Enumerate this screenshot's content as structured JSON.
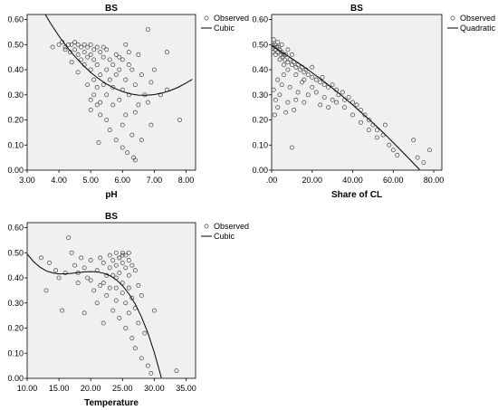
{
  "chart_data": [
    {
      "type": "scatter",
      "title": "BS",
      "xlabel": "pH",
      "ylabel": "",
      "xlim": [
        3.0,
        8.3
      ],
      "ylim": [
        0.0,
        0.62
      ],
      "xticks": [
        "3.00",
        "4.00",
        "5.00",
        "6.00",
        "7.00",
        "8.00"
      ],
      "yticks": [
        "0.00",
        "0.10",
        "0.20",
        "0.30",
        "0.40",
        "0.50",
        "0.60"
      ],
      "legend": {
        "position": "right",
        "observed": "Observed",
        "fit": "Cubic"
      },
      "fit_type": "cubic",
      "points": [
        [
          4.1,
          0.51
        ],
        [
          4.2,
          0.49
        ],
        [
          4.3,
          0.5
        ],
        [
          4.35,
          0.47
        ],
        [
          4.4,
          0.5
        ],
        [
          4.5,
          0.48
        ],
        [
          4.5,
          0.51
        ],
        [
          4.6,
          0.46
        ],
        [
          4.6,
          0.5
        ],
        [
          4.7,
          0.49
        ],
        [
          4.7,
          0.44
        ],
        [
          4.8,
          0.5
        ],
        [
          4.8,
          0.47
        ],
        [
          4.8,
          0.42
        ],
        [
          4.9,
          0.49
        ],
        [
          4.9,
          0.45
        ],
        [
          4.9,
          0.34
        ],
        [
          5.0,
          0.5
        ],
        [
          5.0,
          0.46
        ],
        [
          5.0,
          0.4
        ],
        [
          5.0,
          0.28
        ],
        [
          5.0,
          0.24
        ],
        [
          5.1,
          0.48
        ],
        [
          5.1,
          0.44
        ],
        [
          5.1,
          0.36
        ],
        [
          5.1,
          0.3
        ],
        [
          5.2,
          0.49
        ],
        [
          5.2,
          0.42
        ],
        [
          5.2,
          0.33
        ],
        [
          5.2,
          0.26
        ],
        [
          5.25,
          0.11
        ],
        [
          5.3,
          0.47
        ],
        [
          5.3,
          0.38
        ],
        [
          5.3,
          0.22
        ],
        [
          5.4,
          0.45
        ],
        [
          5.4,
          0.34
        ],
        [
          5.5,
          0.48
        ],
        [
          5.5,
          0.4
        ],
        [
          5.5,
          0.3
        ],
        [
          5.6,
          0.44
        ],
        [
          5.6,
          0.36
        ],
        [
          5.6,
          0.16
        ],
        [
          5.7,
          0.42
        ],
        [
          5.7,
          0.33
        ],
        [
          5.7,
          0.26
        ],
        [
          5.8,
          0.46
        ],
        [
          5.8,
          0.38
        ],
        [
          5.8,
          0.12
        ],
        [
          5.9,
          0.4
        ],
        [
          5.9,
          0.28
        ],
        [
          6.0,
          0.44
        ],
        [
          6.0,
          0.32
        ],
        [
          6.0,
          0.18
        ],
        [
          6.0,
          0.09
        ],
        [
          6.1,
          0.5
        ],
        [
          6.1,
          0.36
        ],
        [
          6.1,
          0.22
        ],
        [
          6.15,
          0.07
        ],
        [
          6.2,
          0.47
        ],
        [
          6.2,
          0.3
        ],
        [
          6.3,
          0.4
        ],
        [
          6.3,
          0.14
        ],
        [
          6.35,
          0.05
        ],
        [
          6.4,
          0.34
        ],
        [
          6.4,
          0.04
        ],
        [
          6.5,
          0.46
        ],
        [
          6.5,
          0.26
        ],
        [
          6.6,
          0.38
        ],
        [
          6.6,
          0.12
        ],
        [
          6.7,
          0.3
        ],
        [
          6.8,
          0.56
        ],
        [
          6.8,
          0.27
        ],
        [
          6.9,
          0.35
        ],
        [
          6.9,
          0.18
        ],
        [
          7.0,
          0.4
        ],
        [
          7.2,
          0.3
        ],
        [
          7.4,
          0.47
        ],
        [
          7.4,
          0.32
        ],
        [
          7.8,
          0.2
        ],
        [
          4.2,
          0.48
        ],
        [
          4.4,
          0.43
        ],
        [
          4.6,
          0.39
        ],
        [
          5.4,
          0.49
        ],
        [
          5.9,
          0.45
        ],
        [
          6.2,
          0.42
        ],
        [
          4.0,
          0.5
        ],
        [
          3.8,
          0.49
        ],
        [
          5.5,
          0.2
        ],
        [
          5.3,
          0.27
        ],
        [
          6.4,
          0.23
        ]
      ],
      "fit_curve": [
        [
          3.5,
          0.635
        ],
        [
          3.75,
          0.582
        ],
        [
          4.0,
          0.534
        ],
        [
          4.25,
          0.491
        ],
        [
          4.5,
          0.453
        ],
        [
          4.75,
          0.419
        ],
        [
          5.0,
          0.389
        ],
        [
          5.25,
          0.364
        ],
        [
          5.5,
          0.343
        ],
        [
          5.75,
          0.326
        ],
        [
          6.0,
          0.313
        ],
        [
          6.25,
          0.304
        ],
        [
          6.5,
          0.299
        ],
        [
          6.75,
          0.298
        ],
        [
          7.0,
          0.301
        ],
        [
          7.25,
          0.307
        ],
        [
          7.5,
          0.317
        ],
        [
          7.75,
          0.33
        ],
        [
          8.0,
          0.347
        ],
        [
          8.2,
          0.362
        ]
      ]
    },
    {
      "type": "scatter",
      "title": "BS",
      "xlabel": "Share of CL",
      "ylabel": "",
      "xlim": [
        0.0,
        84.0
      ],
      "ylim": [
        0.0,
        0.62
      ],
      "xticks": [
        ".00",
        "20.00",
        "40.00",
        "60.00",
        "80.00"
      ],
      "yticks": [
        "0.00",
        "0.10",
        "0.20",
        "0.30",
        "0.40",
        "0.50",
        "0.60"
      ],
      "legend": {
        "position": "right",
        "observed": "Observed",
        "fit": "Quadratic"
      },
      "fit_type": "quadratic",
      "points": [
        [
          0.5,
          0.5
        ],
        [
          1,
          0.49
        ],
        [
          1.5,
          0.5
        ],
        [
          2,
          0.48
        ],
        [
          2.5,
          0.49
        ],
        [
          3,
          0.47
        ],
        [
          3.5,
          0.49
        ],
        [
          4,
          0.48
        ],
        [
          4.5,
          0.46
        ],
        [
          5,
          0.47
        ],
        [
          5.5,
          0.45
        ],
        [
          6,
          0.46
        ],
        [
          6.5,
          0.44
        ],
        [
          7,
          0.46
        ],
        [
          8,
          0.43
        ],
        [
          8,
          0.48
        ],
        [
          9,
          0.44
        ],
        [
          10,
          0.42
        ],
        [
          10,
          0.46
        ],
        [
          11,
          0.43
        ],
        [
          12,
          0.41
        ],
        [
          13,
          0.42
        ],
        [
          14,
          0.4
        ],
        [
          15,
          0.41
        ],
        [
          16,
          0.39
        ],
        [
          17,
          0.4
        ],
        [
          18,
          0.38
        ],
        [
          20,
          0.37
        ],
        [
          22,
          0.36
        ],
        [
          24,
          0.35
        ],
        [
          25,
          0.37
        ],
        [
          26,
          0.34
        ],
        [
          28,
          0.33
        ],
        [
          30,
          0.34
        ],
        [
          32,
          0.32
        ],
        [
          33,
          0.3
        ],
        [
          35,
          0.31
        ],
        [
          36,
          0.28
        ],
        [
          38,
          0.29
        ],
        [
          40,
          0.27
        ],
        [
          42,
          0.26
        ],
        [
          44,
          0.24
        ],
        [
          46,
          0.22
        ],
        [
          48,
          0.2
        ],
        [
          50,
          0.18
        ],
        [
          52,
          0.16
        ],
        [
          55,
          0.14
        ],
        [
          58,
          0.1
        ],
        [
          60,
          0.08
        ],
        [
          62,
          0.06
        ],
        [
          70,
          0.12
        ],
        [
          72,
          0.05
        ],
        [
          75,
          0.03
        ],
        [
          78,
          0.08
        ],
        [
          1,
          0.32
        ],
        [
          1.5,
          0.22
        ],
        [
          2,
          0.28
        ],
        [
          3,
          0.25
        ],
        [
          3,
          0.36
        ],
        [
          4,
          0.3
        ],
        [
          5,
          0.34
        ],
        [
          6,
          0.38
        ],
        [
          7,
          0.23
        ],
        [
          8,
          0.27
        ],
        [
          9,
          0.33
        ],
        [
          10,
          0.09
        ],
        [
          11,
          0.24
        ],
        [
          12,
          0.28
        ],
        [
          13,
          0.31
        ],
        [
          15,
          0.35
        ],
        [
          16,
          0.27
        ],
        [
          18,
          0.3
        ],
        [
          20,
          0.33
        ],
        [
          22,
          0.31
        ],
        [
          24,
          0.26
        ],
        [
          26,
          0.29
        ],
        [
          28,
          0.25
        ],
        [
          30,
          0.28
        ],
        [
          32,
          0.27
        ],
        [
          36,
          0.25
        ],
        [
          40,
          0.22
        ],
        [
          44,
          0.19
        ],
        [
          48,
          0.16
        ],
        [
          52,
          0.13
        ],
        [
          56,
          0.18
        ],
        [
          2,
          0.46
        ],
        [
          4,
          0.44
        ],
        [
          6,
          0.42
        ],
        [
          8,
          0.4
        ],
        [
          12,
          0.38
        ],
        [
          16,
          0.36
        ],
        [
          20,
          0.41
        ],
        [
          0.5,
          0.47
        ],
        [
          1,
          0.52
        ],
        [
          3,
          0.51
        ],
        [
          5,
          0.5
        ]
      ],
      "fit_curve": [
        [
          0,
          0.495
        ],
        [
          5,
          0.47
        ],
        [
          10,
          0.444
        ],
        [
          15,
          0.417
        ],
        [
          20,
          0.388
        ],
        [
          25,
          0.358
        ],
        [
          30,
          0.327
        ],
        [
          35,
          0.294
        ],
        [
          40,
          0.26
        ],
        [
          45,
          0.224
        ],
        [
          50,
          0.188
        ],
        [
          55,
          0.15
        ],
        [
          60,
          0.11
        ],
        [
          65,
          0.069
        ],
        [
          70,
          0.027
        ],
        [
          73,
          0.002
        ]
      ]
    },
    {
      "type": "scatter",
      "title": "BS",
      "xlabel": "Temperature",
      "ylabel": "",
      "xlim": [
        10.0,
        36.5
      ],
      "ylim": [
        0.0,
        0.62
      ],
      "xticks": [
        "10.00",
        "15.00",
        "20.00",
        "25.00",
        "30.00",
        "35.00"
      ],
      "yticks": [
        "0.00",
        "0.10",
        "0.20",
        "0.30",
        "0.40",
        "0.50",
        "0.60"
      ],
      "legend": {
        "position": "right",
        "observed": "Observed",
        "fit": "Cubic"
      },
      "fit_type": "cubic",
      "points": [
        [
          12.2,
          0.48
        ],
        [
          13,
          0.35
        ],
        [
          13.5,
          0.46
        ],
        [
          14.5,
          0.43
        ],
        [
          15,
          0.4
        ],
        [
          15.5,
          0.27
        ],
        [
          16,
          0.42
        ],
        [
          16.5,
          0.56
        ],
        [
          17,
          0.5
        ],
        [
          17.5,
          0.45
        ],
        [
          18,
          0.38
        ],
        [
          18.5,
          0.48
        ],
        [
          19,
          0.26
        ],
        [
          19,
          0.44
        ],
        [
          19.5,
          0.4
        ],
        [
          20,
          0.47
        ],
        [
          20.5,
          0.35
        ],
        [
          21,
          0.43
        ],
        [
          21,
          0.3
        ],
        [
          21.5,
          0.48
        ],
        [
          22,
          0.46
        ],
        [
          22,
          0.22
        ],
        [
          22.5,
          0.41
        ],
        [
          22.5,
          0.33
        ],
        [
          23,
          0.49
        ],
        [
          23,
          0.44
        ],
        [
          23,
          0.36
        ],
        [
          23.5,
          0.47
        ],
        [
          23.5,
          0.27
        ],
        [
          24,
          0.5
        ],
        [
          24,
          0.45
        ],
        [
          24,
          0.4
        ],
        [
          24,
          0.31
        ],
        [
          24.5,
          0.48
        ],
        [
          24.5,
          0.42
        ],
        [
          24.5,
          0.24
        ],
        [
          25,
          0.5
        ],
        [
          25,
          0.46
        ],
        [
          25,
          0.38
        ],
        [
          25,
          0.34
        ],
        [
          25.5,
          0.49
        ],
        [
          25.5,
          0.44
        ],
        [
          25.5,
          0.3
        ],
        [
          25.5,
          0.2
        ],
        [
          26,
          0.47
        ],
        [
          26,
          0.41
        ],
        [
          26,
          0.36
        ],
        [
          26,
          0.26
        ],
        [
          26.5,
          0.45
        ],
        [
          26.5,
          0.32
        ],
        [
          26.5,
          0.16
        ],
        [
          27,
          0.43
        ],
        [
          27,
          0.28
        ],
        [
          27,
          0.12
        ],
        [
          27.5,
          0.37
        ],
        [
          27.5,
          0.22
        ],
        [
          28,
          0.33
        ],
        [
          28,
          0.08
        ],
        [
          28.5,
          0.18
        ],
        [
          29,
          0.05
        ],
        [
          29.5,
          0.02
        ],
        [
          30,
          0.27
        ],
        [
          33.5,
          0.03
        ],
        [
          20,
          0.39
        ],
        [
          18,
          0.42
        ],
        [
          22,
          0.38
        ],
        [
          24,
          0.36
        ],
        [
          26,
          0.5
        ],
        [
          25,
          0.49
        ],
        [
          24.5,
          0.48
        ],
        [
          23.5,
          0.41
        ],
        [
          21.5,
          0.37
        ]
      ],
      "fit_curve": [
        [
          10,
          0.495
        ],
        [
          11,
          0.465
        ],
        [
          12,
          0.443
        ],
        [
          13,
          0.428
        ],
        [
          14,
          0.42
        ],
        [
          15,
          0.416
        ],
        [
          16,
          0.416
        ],
        [
          17,
          0.418
        ],
        [
          18,
          0.421
        ],
        [
          19,
          0.424
        ],
        [
          20,
          0.425
        ],
        [
          21,
          0.424
        ],
        [
          22,
          0.419
        ],
        [
          23,
          0.409
        ],
        [
          24,
          0.393
        ],
        [
          25,
          0.369
        ],
        [
          26,
          0.337
        ],
        [
          27,
          0.296
        ],
        [
          28,
          0.244
        ],
        [
          29,
          0.18
        ],
        [
          30,
          0.103
        ],
        [
          31,
          0.013
        ],
        [
          31.1,
          0.003
        ]
      ]
    }
  ]
}
